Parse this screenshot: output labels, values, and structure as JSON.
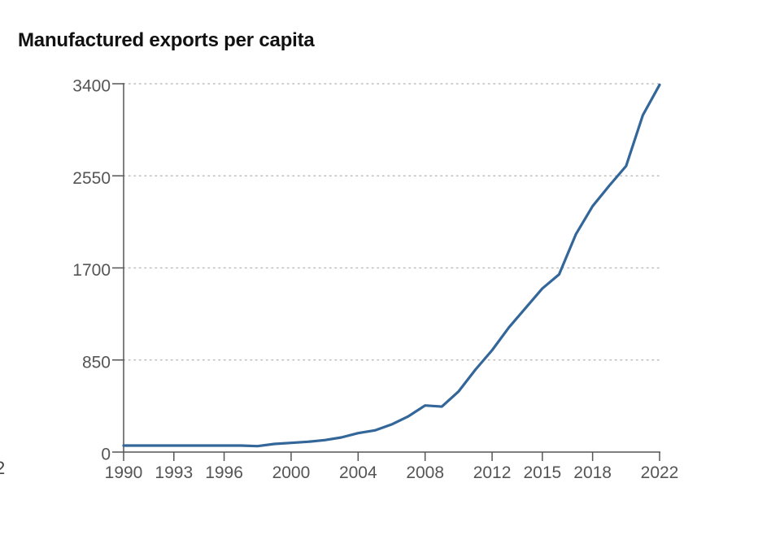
{
  "chart_data": {
    "type": "line",
    "title": "Manufactured exports per capita",
    "xlabel": "",
    "ylabel": "",
    "xlim": [
      1990,
      2022
    ],
    "ylim": [
      0,
      3400
    ],
    "yticks": [
      0,
      850,
      1700,
      2550,
      3400
    ],
    "ytick_labels": [
      "0",
      "850",
      "1700",
      "2550",
      "3400"
    ],
    "xticks": [
      1990,
      1993,
      1996,
      2000,
      2004,
      2008,
      2012,
      2015,
      2018,
      2022
    ],
    "xtick_labels": [
      "1990",
      "1993",
      "1996",
      "2000",
      "2004",
      "2008",
      "2012",
      "2015",
      "2018",
      "2022"
    ],
    "grid": "horizontal-dotted",
    "series": [
      {
        "name": "Manufactured exports per capita",
        "color": "#336699",
        "x": [
          1990,
          1991,
          1992,
          1993,
          1994,
          1995,
          1996,
          1997,
          1998,
          1999,
          2000,
          2001,
          2002,
          2003,
          2004,
          2005,
          2006,
          2007,
          2008,
          2009,
          2010,
          2011,
          2012,
          2013,
          2014,
          2015,
          2016,
          2017,
          2018,
          2019,
          2020,
          2021,
          2022
        ],
        "values": [
          60,
          60,
          60,
          60,
          60,
          60,
          60,
          60,
          55,
          75,
          85,
          95,
          110,
          135,
          175,
          200,
          255,
          330,
          430,
          420,
          560,
          760,
          940,
          1150,
          1330,
          1510,
          1640,
          2010,
          2270,
          2460,
          2640,
          3110,
          3390
        ]
      }
    ]
  },
  "edge_fragment": "2"
}
